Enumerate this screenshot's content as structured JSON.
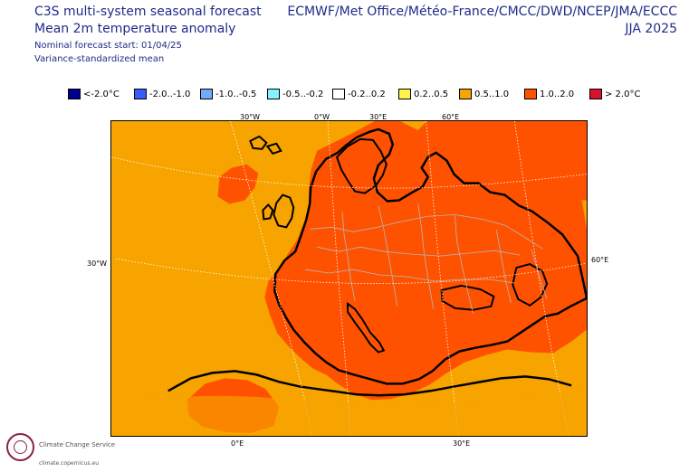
{
  "header": {
    "title_main": "C3S multi-system seasonal forecast",
    "title_sub": "Mean 2m temperature anomaly",
    "forecast_start": "Nominal forecast start: 01/04/25",
    "method": "Variance-standardized mean",
    "systems": "ECMWF/Met Office/Météo-France/CMCC/DWD/NCEP/JMA/ECCC",
    "season": "JJA 2025"
  },
  "legend": [
    {
      "label": "<-2.0°C",
      "color": "#00008f"
    },
    {
      "label": "-2.0..-1.0",
      "color": "#3a5cff"
    },
    {
      "label": "-1.0..-0.5",
      "color": "#73a9ff"
    },
    {
      "label": "-0.5..-0.2",
      "color": "#85f4ff"
    },
    {
      "label": "-0.2..0.2",
      "color": "#ffffff"
    },
    {
      "label": "0.2..0.5",
      "color": "#fff24a"
    },
    {
      "label": "0.5..1.0",
      "color": "#f7a300"
    },
    {
      "label": "1.0..2.0",
      "color": "#ff5200"
    },
    {
      "label": "> 2.0°C",
      "color": "#d9122b"
    }
  ],
  "axis_labels": {
    "top_30w": "30°W",
    "top_0w": "0°W",
    "top_30e": "30°E",
    "top_60e": "60°E",
    "left_30w": "30°W",
    "right_60e": "60°E",
    "bottom_0e": "0°E",
    "bottom_30e": "30°E"
  },
  "logo": {
    "name": "Climate\nChange Service",
    "url": "climate.copernicus.eu"
  }
}
